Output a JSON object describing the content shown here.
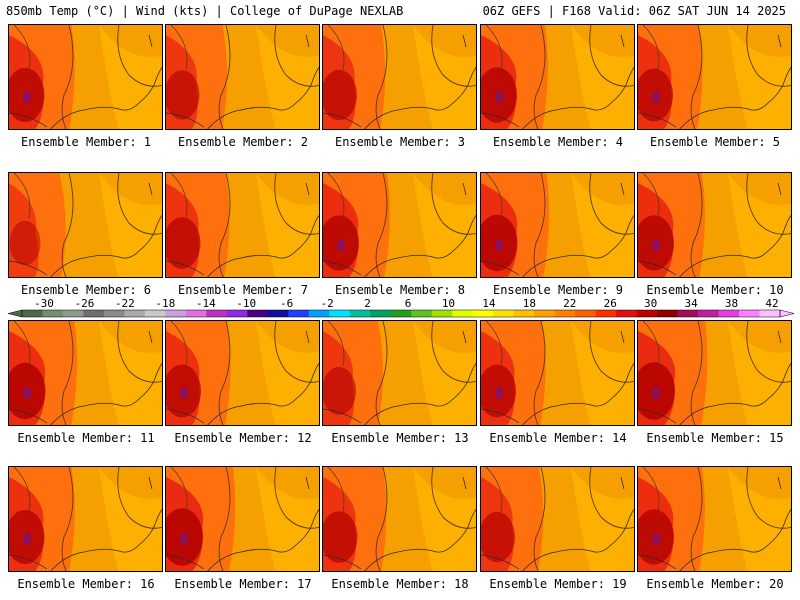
{
  "header": {
    "title_left": "850mb Temp (°C) | Wind (kts) | College of DuPage NEXLAB",
    "title_right": "06Z GEFS | F168 Valid: 06Z SAT JUN 14 2025"
  },
  "panels": [
    {
      "label": "Ensemble Member: 1",
      "hot": 0.75
    },
    {
      "label": "Ensemble Member: 2",
      "hot": 0.55
    },
    {
      "label": "Ensemble Member: 3",
      "hot": 0.6
    },
    {
      "label": "Ensemble Member: 4",
      "hot": 0.8
    },
    {
      "label": "Ensemble Member: 5",
      "hot": 0.7
    },
    {
      "label": "Ensemble Member: 6",
      "hot": 0.35
    },
    {
      "label": "Ensemble Member: 7",
      "hot": 0.65
    },
    {
      "label": "Ensemble Member: 8",
      "hot": 0.8
    },
    {
      "label": "Ensemble Member: 9",
      "hot": 0.85
    },
    {
      "label": "Ensemble Member: 10",
      "hot": 0.8
    },
    {
      "label": "Ensemble Member: 11",
      "hot": 0.85
    },
    {
      "label": "Ensemble Member: 12",
      "hot": 0.7
    },
    {
      "label": "Ensemble Member: 13",
      "hot": 0.5
    },
    {
      "label": "Ensemble Member: 14",
      "hot": 0.7
    },
    {
      "label": "Ensemble Member: 15",
      "hot": 0.9
    },
    {
      "label": "Ensemble Member: 16",
      "hot": 0.75
    },
    {
      "label": "Ensemble Member: 17",
      "hot": 0.9
    },
    {
      "label": "Ensemble Member: 18",
      "hot": 0.65
    },
    {
      "label": "Ensemble Member: 19",
      "hot": 0.6
    },
    {
      "label": "Ensemble Member: 20",
      "hot": 0.8
    }
  ],
  "colorbar": {
    "tick_labels": [
      "-30",
      "-26",
      "-22",
      "-18",
      "-14",
      "-10",
      "-6",
      "-2",
      "2",
      "6",
      "10",
      "14",
      "18",
      "22",
      "26",
      "30",
      "34",
      "38",
      "42"
    ],
    "colors": [
      "#4a6a4a",
      "#6f8f6f",
      "#8c9c8c",
      "#6e6e6e",
      "#8a8a8a",
      "#aaaaaa",
      "#c8c8c8",
      "#c9a0dc",
      "#e070e0",
      "#c030c0",
      "#8a2be2",
      "#4b0082",
      "#1010a0",
      "#2040ff",
      "#00a0ff",
      "#00e0ff",
      "#00c0a0",
      "#00a060",
      "#20a020",
      "#60c020",
      "#a0e000",
      "#e0ff00",
      "#ffff00",
      "#ffe000",
      "#ffc000",
      "#ffa000",
      "#ff8000",
      "#ff6000",
      "#ff3000",
      "#e01010",
      "#c00000",
      "#900000",
      "#a0105a",
      "#c020a0",
      "#e040e0",
      "#ff80ff",
      "#ffc0ff"
    ]
  }
}
